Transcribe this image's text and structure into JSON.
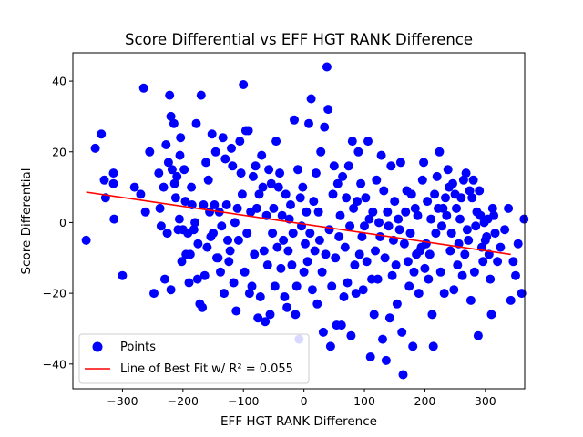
{
  "chart_data": {
    "type": "scatter",
    "title": "Score Differential vs EFF HGT RANK Difference",
    "xlabel": "EFF HGT RANK Difference",
    "ylabel": "Score Differential",
    "xlim": [
      -382,
      365
    ],
    "ylim": [
      -47,
      48
    ],
    "xticks": [
      -300,
      -200,
      -100,
      0,
      100,
      200,
      300
    ],
    "yticks": [
      -40,
      -20,
      0,
      20,
      40
    ],
    "xtick_labels": [
      "−300",
      "−200",
      "−100",
      "0",
      "100",
      "200",
      "300"
    ],
    "ytick_labels": [
      "−40",
      "−20",
      "0",
      "20",
      "40"
    ],
    "grid": false,
    "legend_position": "lower-left",
    "colors": {
      "points": "#0000ff",
      "fit_line": "#ff0000"
    },
    "series": [
      {
        "name": "Points",
        "type": "scatter",
        "points": [
          [
            -360,
            -5
          ],
          [
            -345,
            21
          ],
          [
            -335,
            25
          ],
          [
            -330,
            12
          ],
          [
            -328,
            7
          ],
          [
            -315,
            14
          ],
          [
            -315,
            11
          ],
          [
            -314,
            1
          ],
          [
            -300,
            -15
          ],
          [
            -280,
            10
          ],
          [
            -270,
            8
          ],
          [
            -265,
            38
          ],
          [
            -262,
            3
          ],
          [
            -255,
            20
          ],
          [
            -248,
            -20
          ],
          [
            -240,
            14
          ],
          [
            -238,
            4
          ],
          [
            -236,
            -1
          ],
          [
            -232,
            10
          ],
          [
            -230,
            -16
          ],
          [
            -228,
            22
          ],
          [
            -226,
            -3
          ],
          [
            -224,
            17
          ],
          [
            -222,
            36
          ],
          [
            -220,
            -19
          ],
          [
            -220,
            30
          ],
          [
            -218,
            15
          ],
          [
            -215,
            28
          ],
          [
            -214,
            11
          ],
          [
            -212,
            7
          ],
          [
            -210,
            13
          ],
          [
            -208,
            -2
          ],
          [
            -206,
            1
          ],
          [
            -205,
            19
          ],
          [
            -204,
            24
          ],
          [
            -202,
            -11
          ],
          [
            -200,
            -2
          ],
          [
            -198,
            15
          ],
          [
            -196,
            6
          ],
          [
            -195,
            -9
          ],
          [
            -192,
            -3
          ],
          [
            -190,
            -17
          ],
          [
            -188,
            -9
          ],
          [
            -186,
            10
          ],
          [
            -185,
            5
          ],
          [
            -182,
            -2
          ],
          [
            -180,
            0
          ],
          [
            -178,
            28
          ],
          [
            -176,
            -16
          ],
          [
            -175,
            -6
          ],
          [
            -172,
            -23
          ],
          [
            -170,
            36
          ],
          [
            -168,
            -24
          ],
          [
            -166,
            5
          ],
          [
            -164,
            -15
          ],
          [
            -162,
            17
          ],
          [
            -160,
            -7
          ],
          [
            -158,
            12
          ],
          [
            -156,
            3
          ],
          [
            -154,
            -4
          ],
          [
            -152,
            25
          ],
          [
            -150,
            -3
          ],
          [
            -148,
            5
          ],
          [
            -146,
            20
          ],
          [
            -144,
            -10
          ],
          [
            -142,
            -10
          ],
          [
            -140,
            3
          ],
          [
            -138,
            -14
          ],
          [
            -136,
            -1
          ],
          [
            -134,
            24
          ],
          [
            -132,
            -20
          ],
          [
            -130,
            18
          ],
          [
            -128,
            5
          ],
          [
            -126,
            -5
          ],
          [
            -124,
            -11
          ],
          [
            -122,
            -8
          ],
          [
            -120,
            21
          ],
          [
            -118,
            16
          ],
          [
            -116,
            -17
          ],
          [
            -114,
            0
          ],
          [
            -112,
            -25
          ],
          [
            -110,
            4
          ],
          [
            -108,
            -5
          ],
          [
            -106,
            23
          ],
          [
            -104,
            14
          ],
          [
            -102,
            8
          ],
          [
            -100,
            39
          ],
          [
            -98,
            -14
          ],
          [
            -96,
            26
          ],
          [
            -94,
            -3
          ],
          [
            -92,
            26
          ],
          [
            -90,
            -20
          ],
          [
            -88,
            3
          ],
          [
            -86,
            -18
          ],
          [
            -84,
            13
          ],
          [
            -82,
            -9
          ],
          [
            -80,
            16
          ],
          [
            -78,
            4
          ],
          [
            -76,
            -27
          ],
          [
            -74,
            8
          ],
          [
            -72,
            -21
          ],
          [
            -70,
            19
          ],
          [
            -68,
            10
          ],
          [
            -66,
            -8
          ],
          [
            -64,
            -28
          ],
          [
            -62,
            2
          ],
          [
            -60,
            -12
          ],
          [
            -58,
            15
          ],
          [
            -56,
            -26
          ],
          [
            -54,
            11
          ],
          [
            -52,
            -3
          ],
          [
            -50,
            4
          ],
          [
            -48,
            -18
          ],
          [
            -46,
            23
          ],
          [
            -44,
            -7
          ],
          [
            -42,
            10
          ],
          [
            -40,
            14
          ],
          [
            -38,
            -13
          ],
          [
            -36,
            2
          ],
          [
            -34,
            -5
          ],
          [
            -32,
            -21
          ],
          [
            -30,
            8
          ],
          [
            -28,
            -24
          ],
          [
            -26,
            -8
          ],
          [
            -24,
            1
          ],
          [
            -22,
            5
          ],
          [
            -20,
            -12
          ],
          [
            -18,
            -3
          ],
          [
            -16,
            29
          ],
          [
            -14,
            -26
          ],
          [
            -12,
            -18
          ],
          [
            -10,
            15
          ],
          [
            -8,
            -33
          ],
          [
            -6,
            7
          ],
          [
            -4,
            -1
          ],
          [
            -2,
            10
          ],
          [
            0,
            -14
          ],
          [
            2,
            -6
          ],
          [
            4,
            3
          ],
          [
            6,
            -11
          ],
          [
            8,
            28
          ],
          [
            10,
            -3
          ],
          [
            12,
            35
          ],
          [
            14,
            -19
          ],
          [
            16,
            6
          ],
          [
            18,
            -8
          ],
          [
            20,
            14
          ],
          [
            22,
            -23
          ],
          [
            24,
            3
          ],
          [
            26,
            -5
          ],
          [
            28,
            20
          ],
          [
            30,
            -14
          ],
          [
            32,
            -31
          ],
          [
            34,
            27
          ],
          [
            36,
            -9
          ],
          [
            38,
            44
          ],
          [
            40,
            32
          ],
          [
            42,
            -2
          ],
          [
            44,
            -35
          ],
          [
            46,
            -18
          ],
          [
            48,
            8
          ],
          [
            50,
            16
          ],
          [
            52,
            -10
          ],
          [
            54,
            -29
          ],
          [
            56,
            11
          ],
          [
            58,
            -4
          ],
          [
            60,
            2
          ],
          [
            62,
            -29
          ],
          [
            64,
            13
          ],
          [
            66,
            -21
          ],
          [
            68,
            -7
          ],
          [
            70,
            7
          ],
          [
            72,
            -17
          ],
          [
            74,
            16
          ],
          [
            76,
            -1
          ],
          [
            78,
            -32
          ],
          [
            80,
            23
          ],
          [
            82,
            4
          ],
          [
            84,
            -12
          ],
          [
            86,
            -20
          ],
          [
            88,
            6
          ],
          [
            90,
            20
          ],
          [
            92,
            -9
          ],
          [
            94,
            11
          ],
          [
            96,
            -4
          ],
          [
            98,
            -19
          ],
          [
            100,
            -1
          ],
          [
            102,
            7
          ],
          [
            104,
            -11
          ],
          [
            106,
            23
          ],
          [
            108,
            1
          ],
          [
            110,
            -38
          ],
          [
            112,
            -16
          ],
          [
            114,
            3
          ],
          [
            116,
            -26
          ],
          [
            118,
            -8
          ],
          [
            120,
            12
          ],
          [
            122,
            -16
          ],
          [
            124,
            0
          ],
          [
            126,
            -4
          ],
          [
            128,
            19
          ],
          [
            130,
            -33
          ],
          [
            132,
            9
          ],
          [
            134,
            -10
          ],
          [
            136,
            -39
          ],
          [
            138,
            3
          ],
          [
            140,
            -1
          ],
          [
            142,
            -27
          ],
          [
            144,
            16
          ],
          [
            146,
            -15
          ],
          [
            148,
            -5
          ],
          [
            150,
            6
          ],
          [
            152,
            -12
          ],
          [
            154,
            -23
          ],
          [
            156,
            1
          ],
          [
            158,
            -2
          ],
          [
            160,
            17
          ],
          [
            162,
            -31
          ],
          [
            164,
            -43
          ],
          [
            166,
            -6
          ],
          [
            168,
            3
          ],
          [
            170,
            9
          ],
          [
            172,
            -11
          ],
          [
            174,
            -18
          ],
          [
            176,
            -3
          ],
          [
            178,
            8
          ],
          [
            180,
            -35
          ],
          [
            182,
            -14
          ],
          [
            184,
            4
          ],
          [
            186,
            -9
          ],
          [
            188,
            2
          ],
          [
            190,
            -20
          ],
          [
            192,
            -8
          ],
          [
            194,
            -7
          ],
          [
            196,
            12
          ],
          [
            198,
            17
          ],
          [
            200,
            -13
          ],
          [
            202,
            -6
          ],
          [
            204,
            6
          ],
          [
            206,
            -16
          ],
          [
            208,
            -9
          ],
          [
            210,
            1
          ],
          [
            212,
            -26
          ],
          [
            214,
            -35
          ],
          [
            216,
            8
          ],
          [
            218,
            -3
          ],
          [
            220,
            13
          ],
          [
            222,
            4
          ],
          [
            224,
            20
          ],
          [
            226,
            -14
          ],
          [
            228,
            -1
          ],
          [
            230,
            4
          ],
          [
            232,
            -20
          ],
          [
            234,
            7
          ],
          [
            236,
            2
          ],
          [
            238,
            15
          ],
          [
            240,
            10
          ],
          [
            242,
            -8
          ],
          [
            244,
            -3
          ],
          [
            246,
            11
          ],
          [
            248,
            -19
          ],
          [
            250,
            8
          ],
          [
            252,
            4
          ],
          [
            254,
            -12
          ],
          [
            256,
            -6
          ],
          [
            258,
            1
          ],
          [
            260,
            7
          ],
          [
            262,
            -15
          ],
          [
            264,
            12
          ],
          [
            266,
            -9
          ],
          [
            268,
            14
          ],
          [
            270,
            -2
          ],
          [
            272,
            -5
          ],
          [
            274,
            9
          ],
          [
            276,
            -22
          ],
          [
            278,
            7
          ],
          [
            280,
            12
          ],
          [
            282,
            -14
          ],
          [
            284,
            -1
          ],
          [
            286,
            3
          ],
          [
            288,
            -32
          ],
          [
            290,
            9
          ],
          [
            292,
            2
          ],
          [
            294,
            -7
          ],
          [
            296,
            -11
          ],
          [
            298,
            0
          ],
          [
            300,
            -5
          ],
          [
            302,
            -4
          ],
          [
            304,
            1
          ],
          [
            306,
            -9
          ],
          [
            308,
            -16
          ],
          [
            310,
            -26
          ],
          [
            312,
            4
          ],
          [
            314,
            2
          ],
          [
            316,
            -3
          ],
          [
            320,
            -11
          ],
          [
            325,
            -7
          ],
          [
            332,
            -2
          ],
          [
            338,
            4
          ],
          [
            342,
            -22
          ],
          [
            346,
            -11
          ],
          [
            350,
            -15
          ],
          [
            354,
            -6
          ],
          [
            360,
            -20
          ],
          [
            364,
            1
          ]
        ]
      },
      {
        "name": "Line of Best Fit w/ R² = 0.055",
        "type": "line",
        "x": [
          -360,
          342
        ],
        "values": [
          8.6,
          -9.0
        ]
      }
    ]
  }
}
